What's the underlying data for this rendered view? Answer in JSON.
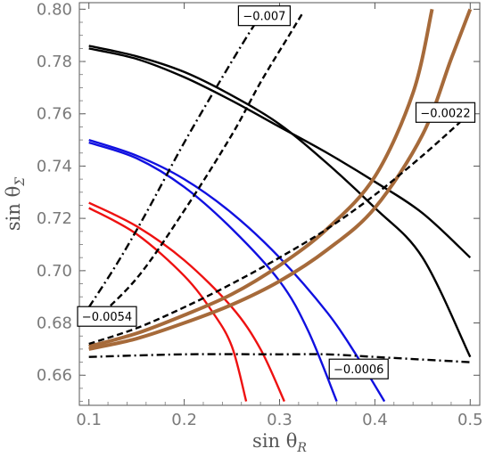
{
  "chart_data": {
    "type": "line",
    "title": "",
    "xlabel": "sin θ",
    "xlabel_sub": "R",
    "ylabel": "sin θ",
    "ylabel_sub": "Σ",
    "xlim": [
      0.09,
      0.51
    ],
    "ylim": [
      0.6485,
      0.8025
    ],
    "xticks": [
      0.1,
      0.2,
      0.3,
      0.4,
      0.5
    ],
    "xtick_labels": [
      "0.1",
      "0.2",
      "0.3",
      "0.4",
      "0.5"
    ],
    "yticks": [
      0.66,
      0.68,
      0.7,
      0.72,
      0.74,
      0.76,
      0.78,
      0.8
    ],
    "ytick_labels": [
      "0.66",
      "0.68",
      "0.70",
      "0.72",
      "0.74",
      "0.76",
      "0.78",
      "0.80"
    ],
    "grid": false,
    "legend": "none",
    "series": [
      {
        "color": "#000000",
        "style": "solid",
        "width": 2.4,
        "points": [
          [
            0.1,
            0.786
          ],
          [
            0.15,
            0.782
          ],
          [
            0.2,
            0.776
          ],
          [
            0.25,
            0.767
          ],
          [
            0.3,
            0.756
          ],
          [
            0.35,
            0.741
          ],
          [
            0.4,
            0.724
          ],
          [
            0.45,
            0.705
          ],
          [
            0.5,
            0.667
          ]
        ]
      },
      {
        "color": "#000000",
        "style": "solid",
        "width": 2.4,
        "points": [
          [
            0.1,
            0.785
          ],
          [
            0.15,
            0.781
          ],
          [
            0.2,
            0.774
          ],
          [
            0.25,
            0.765
          ],
          [
            0.3,
            0.755
          ],
          [
            0.35,
            0.745
          ],
          [
            0.4,
            0.734
          ],
          [
            0.45,
            0.722
          ],
          [
            0.5,
            0.705
          ]
        ]
      },
      {
        "color": "#1010e0",
        "style": "solid",
        "width": 2.4,
        "points": [
          [
            0.1,
            0.75
          ],
          [
            0.15,
            0.744
          ],
          [
            0.2,
            0.735
          ],
          [
            0.25,
            0.722
          ],
          [
            0.3,
            0.705
          ],
          [
            0.35,
            0.684
          ],
          [
            0.38,
            0.668
          ],
          [
            0.41,
            0.65
          ]
        ]
      },
      {
        "color": "#1010e0",
        "style": "solid",
        "width": 2.4,
        "points": [
          [
            0.1,
            0.749
          ],
          [
            0.15,
            0.743
          ],
          [
            0.2,
            0.732
          ],
          [
            0.25,
            0.716
          ],
          [
            0.3,
            0.696
          ],
          [
            0.33,
            0.677
          ],
          [
            0.36,
            0.65
          ]
        ]
      },
      {
        "color": "#ee1111",
        "style": "solid",
        "width": 2.4,
        "points": [
          [
            0.1,
            0.726
          ],
          [
            0.15,
            0.717
          ],
          [
            0.2,
            0.704
          ],
          [
            0.25,
            0.686
          ],
          [
            0.28,
            0.67
          ],
          [
            0.305,
            0.65
          ]
        ]
      },
      {
        "color": "#ee1111",
        "style": "solid",
        "width": 2.4,
        "points": [
          [
            0.1,
            0.724
          ],
          [
            0.15,
            0.714
          ],
          [
            0.2,
            0.698
          ],
          [
            0.23,
            0.684
          ],
          [
            0.25,
            0.671
          ],
          [
            0.265,
            0.65
          ]
        ]
      },
      {
        "color": "#a66a3a",
        "style": "solid",
        "width": 4,
        "points": [
          [
            0.1,
            0.671
          ],
          [
            0.15,
            0.676
          ],
          [
            0.2,
            0.683
          ],
          [
            0.25,
            0.691
          ],
          [
            0.3,
            0.702
          ],
          [
            0.35,
            0.716
          ],
          [
            0.4,
            0.736
          ],
          [
            0.44,
            0.768
          ],
          [
            0.46,
            0.8
          ]
        ]
      },
      {
        "color": "#a66a3a",
        "style": "solid",
        "width": 4,
        "points": [
          [
            0.1,
            0.67
          ],
          [
            0.15,
            0.674
          ],
          [
            0.2,
            0.68
          ],
          [
            0.25,
            0.687
          ],
          [
            0.3,
            0.696
          ],
          [
            0.35,
            0.708
          ],
          [
            0.4,
            0.724
          ],
          [
            0.45,
            0.752
          ],
          [
            0.48,
            0.781
          ],
          [
            0.5,
            0.8
          ]
        ]
      },
      {
        "color": "#000000",
        "style": "dashed",
        "width": 2.4,
        "points": [
          [
            0.1,
            0.672
          ],
          [
            0.15,
            0.678
          ],
          [
            0.2,
            0.686
          ],
          [
            0.25,
            0.695
          ],
          [
            0.3,
            0.705
          ],
          [
            0.35,
            0.716
          ],
          [
            0.4,
            0.729
          ],
          [
            0.45,
            0.744
          ],
          [
            0.49,
            0.757
          ]
        ]
      },
      {
        "color": "#000000",
        "style": "dashed",
        "width": 2.4,
        "points": [
          [
            0.1,
            0.679
          ],
          [
            0.15,
            0.697
          ],
          [
            0.2,
            0.723
          ],
          [
            0.25,
            0.752
          ],
          [
            0.28,
            0.772
          ],
          [
            0.31,
            0.79
          ],
          [
            0.325,
            0.799
          ]
        ]
      },
      {
        "color": "#000000",
        "style": "dashdot",
        "width": 2.4,
        "points": [
          [
            0.1,
            0.667
          ],
          [
            0.2,
            0.668
          ],
          [
            0.3,
            0.668
          ],
          [
            0.35,
            0.668
          ],
          [
            0.4,
            0.667
          ],
          [
            0.45,
            0.666
          ],
          [
            0.5,
            0.665
          ]
        ]
      },
      {
        "color": "#000000",
        "style": "dashdot",
        "width": 2.4,
        "points": [
          [
            0.1,
            0.686
          ],
          [
            0.13,
            0.703
          ],
          [
            0.16,
            0.722
          ],
          [
            0.2,
            0.749
          ],
          [
            0.24,
            0.774
          ],
          [
            0.27,
            0.792
          ],
          [
            0.28,
            0.797
          ]
        ]
      }
    ],
    "annotations": [
      {
        "text": "−0.007",
        "x": 0.284,
        "y": 0.7975,
        "edge": [
          0.282,
          0.7955
        ]
      },
      {
        "text": "−0.0022",
        "x": 0.474,
        "y": 0.7605,
        "edge": [
          0.474,
          0.759
        ]
      },
      {
        "text": "−0.0054",
        "x": 0.119,
        "y": 0.6825,
        "edge": [
          0.12,
          0.6845
        ]
      },
      {
        "text": "−0.0006",
        "x": 0.383,
        "y": 0.6624,
        "edge": [
          0.374,
          0.6645
        ]
      }
    ]
  }
}
